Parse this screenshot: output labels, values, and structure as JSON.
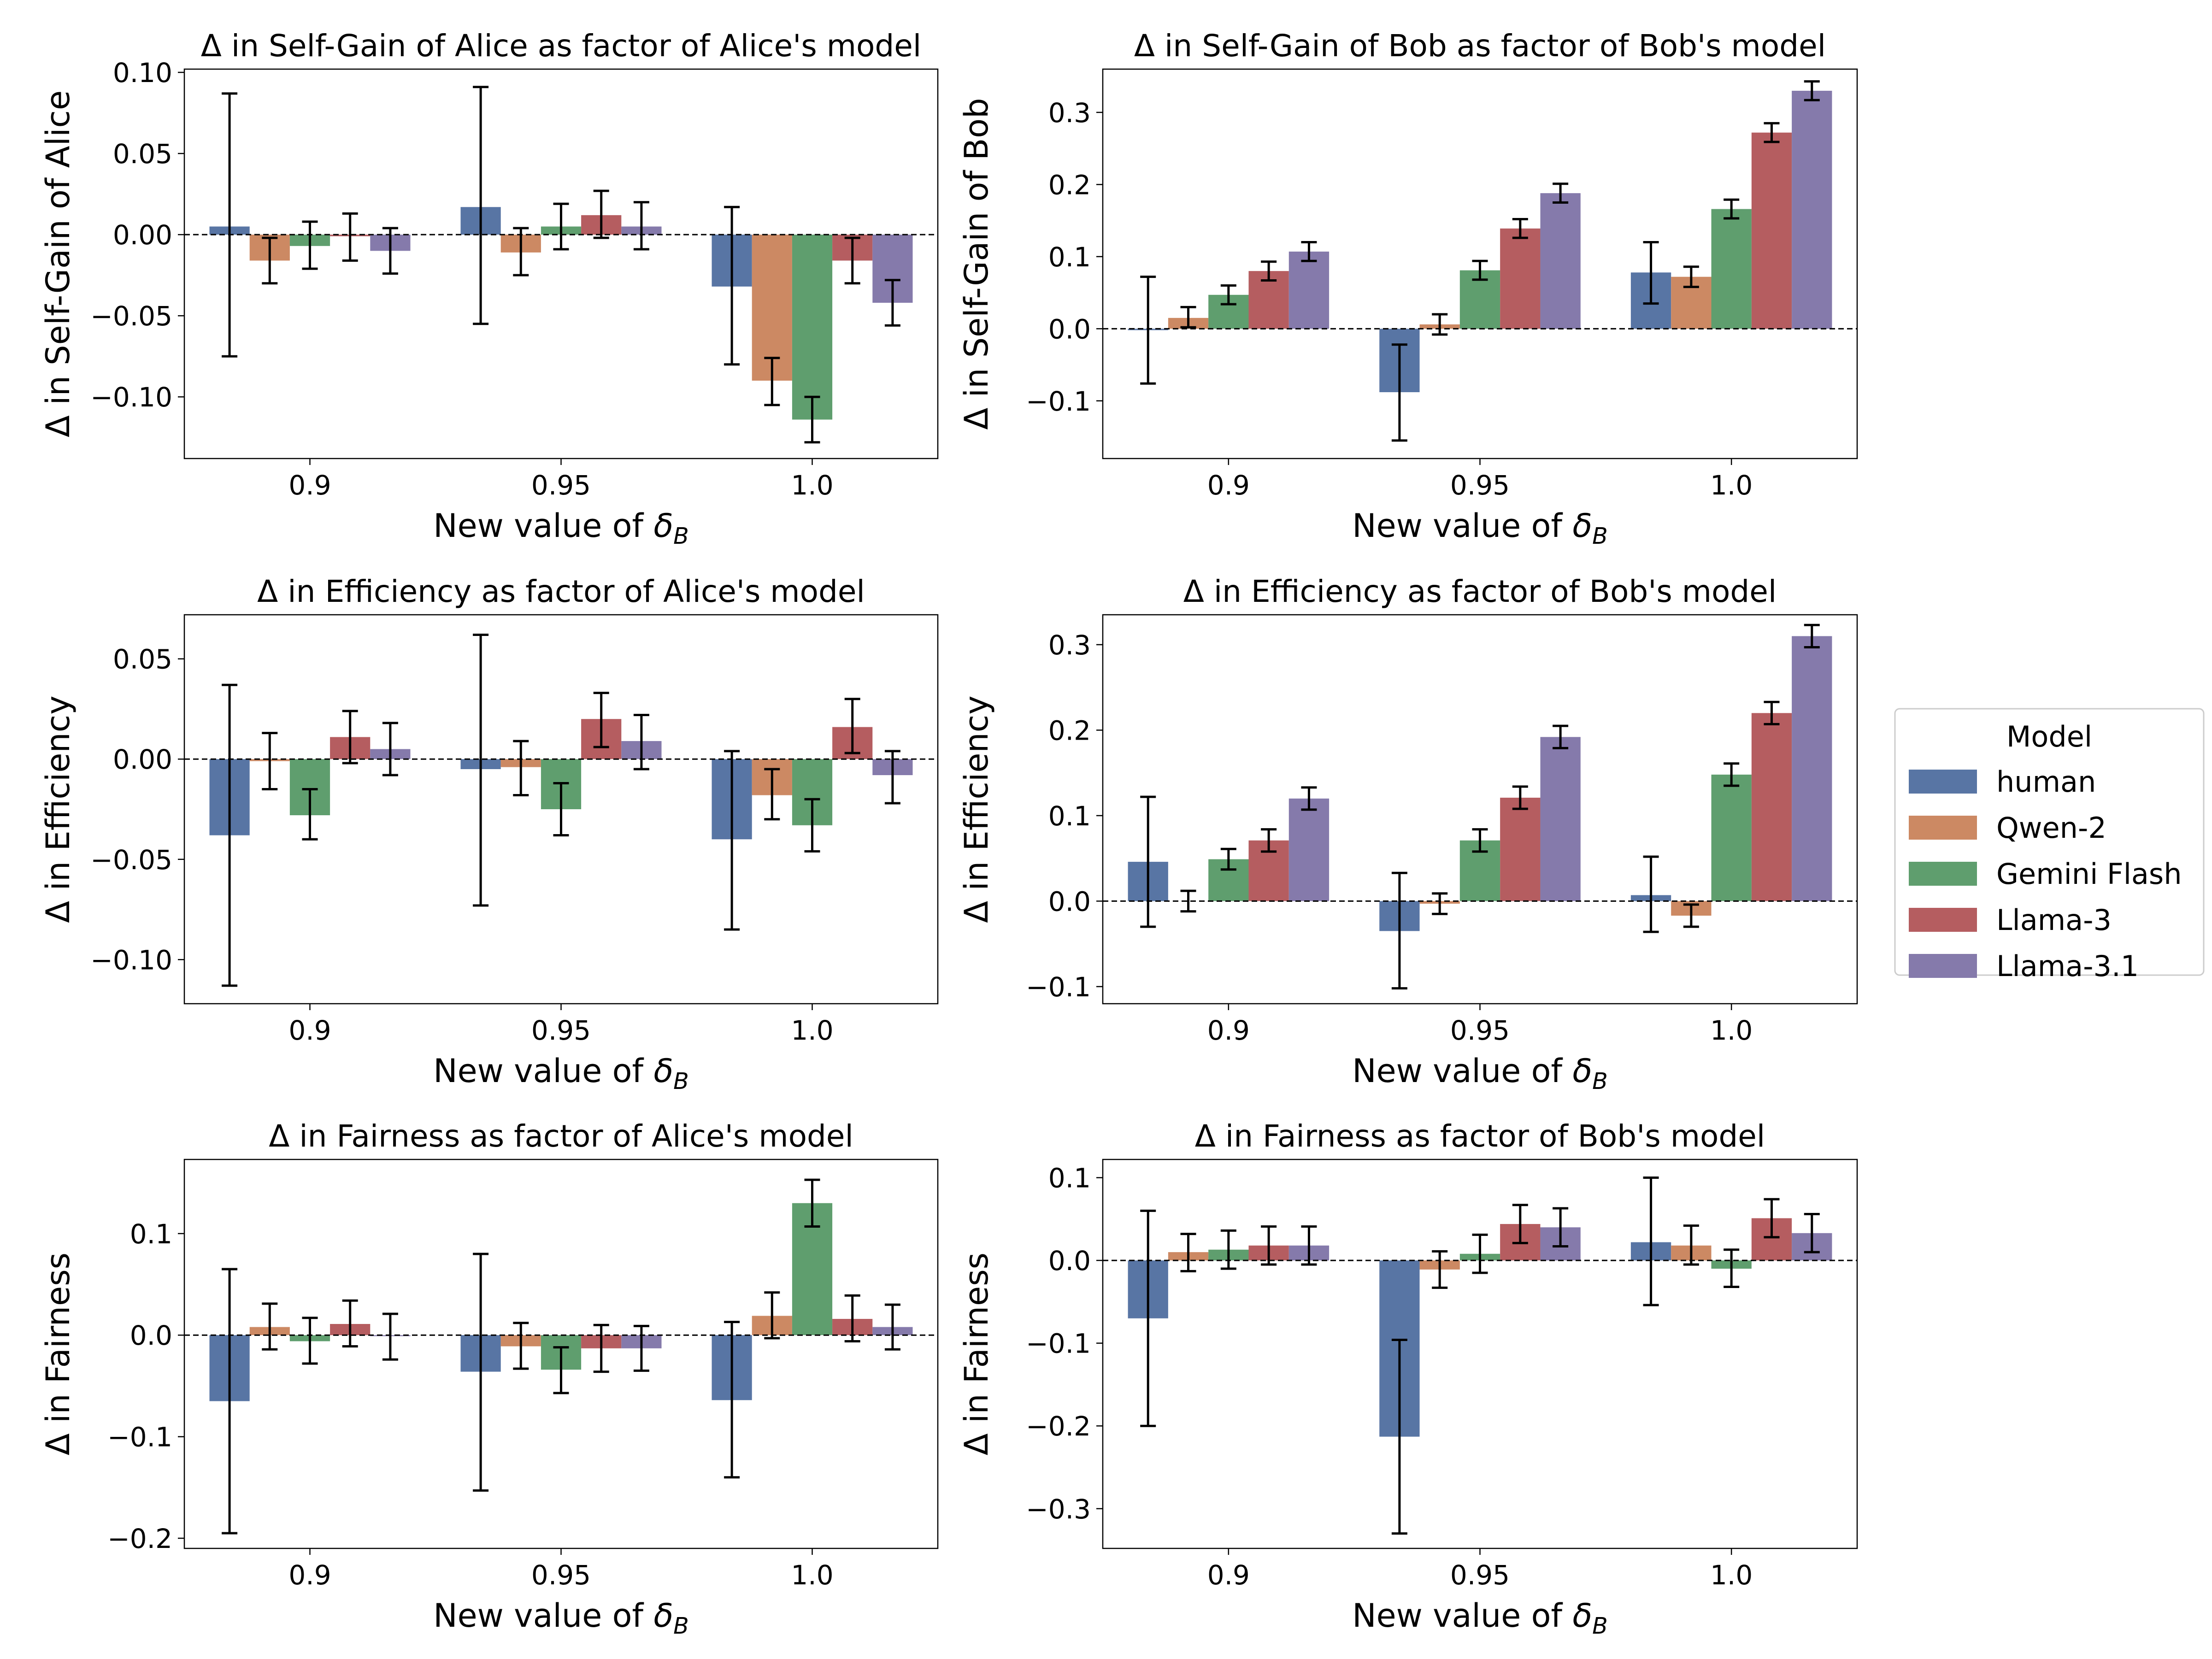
{
  "legend": {
    "title": "Model",
    "placement": "right",
    "entries": [
      "human",
      "Qwen-2",
      "Gemini Flash",
      "Llama-3",
      "Llama-3.1"
    ]
  },
  "colors": {
    "human": "#5875a4",
    "Qwen-2": "#cc8963",
    "Gemini Flash": "#5f9e6e",
    "Llama-3": "#b55d60",
    "Llama-3.1": "#857aab"
  },
  "chart_data": [
    {
      "type": "bar",
      "title": "Δ in Self-Gain of Alice as factor of Alice's model",
      "xlabel": "New value of δ_B",
      "ylabel": "Δ in Self-Gain of Alice",
      "categories": [
        "0.9",
        "0.95",
        "1.0"
      ],
      "ylim": [
        -0.138,
        0.102
      ],
      "yticks": [
        -0.1,
        -0.05,
        0.0,
        0.05,
        0.1
      ],
      "ytick_labels": [
        "−0.10",
        "−0.05",
        "0.00",
        "0.05",
        "0.10"
      ],
      "series": [
        {
          "name": "human",
          "values": [
            0.005,
            0.017,
            -0.032
          ],
          "err_low": [
            -0.075,
            -0.055,
            -0.08
          ],
          "err_high": [
            0.087,
            0.091,
            0.017
          ]
        },
        {
          "name": "Qwen-2",
          "values": [
            -0.016,
            -0.011,
            -0.09
          ],
          "err_low": [
            -0.03,
            -0.025,
            -0.105
          ],
          "err_high": [
            -0.002,
            0.004,
            -0.076
          ]
        },
        {
          "name": "Gemini Flash",
          "values": [
            -0.007,
            0.005,
            -0.114
          ],
          "err_low": [
            -0.021,
            -0.009,
            -0.128
          ],
          "err_high": [
            0.008,
            0.019,
            -0.1
          ]
        },
        {
          "name": "Llama-3",
          "values": [
            -0.001,
            0.012,
            -0.016
          ],
          "err_low": [
            -0.016,
            -0.002,
            -0.03
          ],
          "err_high": [
            0.013,
            0.027,
            -0.002
          ]
        },
        {
          "name": "Llama-3.1",
          "values": [
            -0.01,
            0.005,
            -0.042
          ],
          "err_low": [
            -0.024,
            -0.009,
            -0.056
          ],
          "err_high": [
            0.004,
            0.02,
            -0.028
          ]
        }
      ]
    },
    {
      "type": "bar",
      "title": "Δ in Self-Gain of Bob as factor of Bob's model",
      "xlabel": "New value of δ_B",
      "ylabel": "Δ in Self-Gain of Bob",
      "categories": [
        "0.9",
        "0.95",
        "1.0"
      ],
      "ylim": [
        -0.18,
        0.36
      ],
      "yticks": [
        -0.1,
        0.0,
        0.1,
        0.2,
        0.3
      ],
      "ytick_labels": [
        "−0.1",
        "0.0",
        "0.1",
        "0.2",
        "0.3"
      ],
      "series": [
        {
          "name": "human",
          "values": [
            -0.002,
            -0.088,
            0.078
          ],
          "err_low": [
            -0.076,
            -0.155,
            0.035
          ],
          "err_high": [
            0.072,
            -0.022,
            0.12
          ]
        },
        {
          "name": "Qwen-2",
          "values": [
            0.015,
            0.006,
            0.072
          ],
          "err_low": [
            0.002,
            -0.008,
            0.058
          ],
          "err_high": [
            0.03,
            0.02,
            0.086
          ]
        },
        {
          "name": "Gemini Flash",
          "values": [
            0.047,
            0.081,
            0.166
          ],
          "err_low": [
            0.034,
            0.068,
            0.153
          ],
          "err_high": [
            0.06,
            0.094,
            0.179
          ]
        },
        {
          "name": "Llama-3",
          "values": [
            0.08,
            0.139,
            0.272
          ],
          "err_low": [
            0.067,
            0.126,
            0.259
          ],
          "err_high": [
            0.093,
            0.152,
            0.285
          ]
        },
        {
          "name": "Llama-3.1",
          "values": [
            0.107,
            0.188,
            0.33
          ],
          "err_low": [
            0.094,
            0.175,
            0.317
          ],
          "err_high": [
            0.12,
            0.201,
            0.343
          ]
        }
      ]
    },
    {
      "type": "bar",
      "title": "Δ in Efficiency as factor of Alice's model",
      "xlabel": "New value of δ_B",
      "ylabel": "Δ in Efficiency",
      "categories": [
        "0.9",
        "0.95",
        "1.0"
      ],
      "ylim": [
        -0.122,
        0.072
      ],
      "yticks": [
        -0.1,
        -0.05,
        0.0,
        0.05
      ],
      "ytick_labels": [
        "−0.10",
        "−0.05",
        "0.00",
        "0.05"
      ],
      "series": [
        {
          "name": "human",
          "values": [
            -0.038,
            -0.005,
            -0.04
          ],
          "err_low": [
            -0.113,
            -0.073,
            -0.085
          ],
          "err_high": [
            0.037,
            0.062,
            0.004
          ]
        },
        {
          "name": "Qwen-2",
          "values": [
            -0.001,
            -0.004,
            -0.018
          ],
          "err_low": [
            -0.015,
            -0.018,
            -0.03
          ],
          "err_high": [
            0.013,
            0.009,
            -0.005
          ]
        },
        {
          "name": "Gemini Flash",
          "values": [
            -0.028,
            -0.025,
            -0.033
          ],
          "err_low": [
            -0.04,
            -0.038,
            -0.046
          ],
          "err_high": [
            -0.015,
            -0.012,
            -0.02
          ]
        },
        {
          "name": "Llama-3",
          "values": [
            0.011,
            0.02,
            0.016
          ],
          "err_low": [
            -0.002,
            0.006,
            0.003
          ],
          "err_high": [
            0.024,
            0.033,
            0.03
          ]
        },
        {
          "name": "Llama-3.1",
          "values": [
            0.005,
            0.009,
            -0.008
          ],
          "err_low": [
            -0.008,
            -0.005,
            -0.022
          ],
          "err_high": [
            0.018,
            0.022,
            0.004
          ]
        }
      ]
    },
    {
      "type": "bar",
      "title": "Δ in Efficiency as factor of Bob's model",
      "xlabel": "New value of δ_B",
      "ylabel": "Δ in Efficiency",
      "categories": [
        "0.9",
        "0.95",
        "1.0"
      ],
      "ylim": [
        -0.12,
        0.335
      ],
      "yticks": [
        -0.1,
        0.0,
        0.1,
        0.2,
        0.3
      ],
      "ytick_labels": [
        "−0.1",
        "0.0",
        "0.1",
        "0.2",
        "0.3"
      ],
      "series": [
        {
          "name": "human",
          "values": [
            0.046,
            -0.035,
            0.007
          ],
          "err_low": [
            -0.03,
            -0.102,
            -0.036
          ],
          "err_high": [
            0.122,
            0.033,
            0.052
          ]
        },
        {
          "name": "Qwen-2",
          "values": [
            0.0,
            -0.003,
            -0.017
          ],
          "err_low": [
            -0.012,
            -0.015,
            -0.03
          ],
          "err_high": [
            0.012,
            0.009,
            -0.004
          ]
        },
        {
          "name": "Gemini Flash",
          "values": [
            0.049,
            0.071,
            0.148
          ],
          "err_low": [
            0.037,
            0.058,
            0.135
          ],
          "err_high": [
            0.061,
            0.084,
            0.161
          ]
        },
        {
          "name": "Llama-3",
          "values": [
            0.071,
            0.121,
            0.22
          ],
          "err_low": [
            0.058,
            0.108,
            0.207
          ],
          "err_high": [
            0.084,
            0.134,
            0.233
          ]
        },
        {
          "name": "Llama-3.1",
          "values": [
            0.12,
            0.192,
            0.31
          ],
          "err_low": [
            0.107,
            0.179,
            0.297
          ],
          "err_high": [
            0.133,
            0.205,
            0.323
          ]
        }
      ]
    },
    {
      "type": "bar",
      "title": "Δ in Fairness as factor of Alice's model",
      "xlabel": "New value of δ_B",
      "ylabel": "Δ in Fairness",
      "categories": [
        "0.9",
        "0.95",
        "1.0"
      ],
      "ylim": [
        -0.21,
        0.173
      ],
      "yticks": [
        -0.2,
        -0.1,
        0.0,
        0.1
      ],
      "ytick_labels": [
        "−0.2",
        "−0.1",
        "0.0",
        "0.1"
      ],
      "series": [
        {
          "name": "human",
          "values": [
            -0.065,
            -0.036,
            -0.064
          ],
          "err_low": [
            -0.195,
            -0.153,
            -0.14
          ],
          "err_high": [
            0.065,
            0.08,
            0.013
          ]
        },
        {
          "name": "Qwen-2",
          "values": [
            0.008,
            -0.011,
            0.019
          ],
          "err_low": [
            -0.014,
            -0.033,
            -0.003
          ],
          "err_high": [
            0.031,
            0.012,
            0.042
          ]
        },
        {
          "name": "Gemini Flash",
          "values": [
            -0.006,
            -0.034,
            0.13
          ],
          "err_low": [
            -0.028,
            -0.057,
            0.107
          ],
          "err_high": [
            0.017,
            -0.012,
            0.153
          ]
        },
        {
          "name": "Llama-3",
          "values": [
            0.011,
            -0.013,
            0.016
          ],
          "err_low": [
            -0.011,
            -0.036,
            -0.006
          ],
          "err_high": [
            0.034,
            0.01,
            0.039
          ]
        },
        {
          "name": "Llama-3.1",
          "values": [
            -0.001,
            -0.013,
            0.008
          ],
          "err_low": [
            -0.024,
            -0.035,
            -0.014
          ],
          "err_high": [
            0.021,
            0.009,
            0.03
          ]
        }
      ]
    },
    {
      "type": "bar",
      "title": "Δ in Fairness as factor of Bob's model",
      "xlabel": "New value of δ_B",
      "ylabel": "Δ in Fairness",
      "categories": [
        "0.9",
        "0.95",
        "1.0"
      ],
      "ylim": [
        -0.348,
        0.122
      ],
      "yticks": [
        -0.3,
        -0.2,
        -0.1,
        0.0,
        0.1
      ],
      "ytick_labels": [
        "−0.3",
        "−0.2",
        "−0.1",
        "0.0",
        "0.1"
      ],
      "series": [
        {
          "name": "human",
          "values": [
            -0.07,
            -0.213,
            0.022
          ],
          "err_low": [
            -0.2,
            -0.33,
            -0.054
          ],
          "err_high": [
            0.06,
            -0.096,
            0.1
          ]
        },
        {
          "name": "Qwen-2",
          "values": [
            0.01,
            -0.011,
            0.018
          ],
          "err_low": [
            -0.013,
            -0.033,
            -0.005
          ],
          "err_high": [
            0.032,
            0.011,
            0.042
          ]
        },
        {
          "name": "Gemini Flash",
          "values": [
            0.013,
            0.008,
            -0.01
          ],
          "err_low": [
            -0.01,
            -0.015,
            -0.032
          ],
          "err_high": [
            0.036,
            0.031,
            0.013
          ]
        },
        {
          "name": "Llama-3",
          "values": [
            0.018,
            0.044,
            0.051
          ],
          "err_low": [
            -0.005,
            0.021,
            0.028
          ],
          "err_high": [
            0.041,
            0.067,
            0.074
          ]
        },
        {
          "name": "Llama-3.1",
          "values": [
            0.018,
            0.04,
            0.033
          ],
          "err_low": [
            -0.005,
            0.017,
            0.01
          ],
          "err_high": [
            0.041,
            0.063,
            0.056
          ]
        }
      ]
    }
  ]
}
